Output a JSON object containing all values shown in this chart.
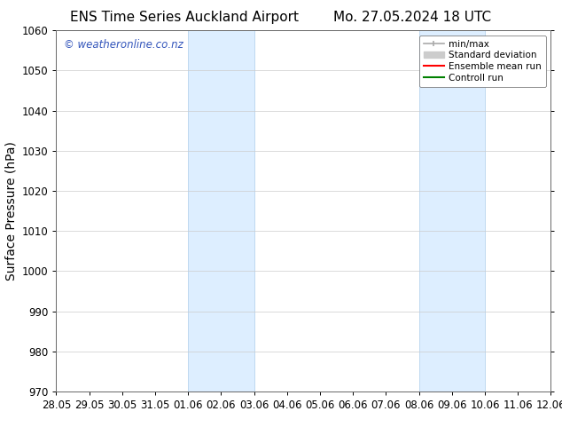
{
  "title_left": "ENS Time Series Auckland Airport",
  "title_right": "Mo. 27.05.2024 18 UTC",
  "ylabel": "Surface Pressure (hPa)",
  "ylim": [
    970,
    1060
  ],
  "yticks": [
    970,
    980,
    990,
    1000,
    1010,
    1020,
    1030,
    1040,
    1050,
    1060
  ],
  "x_tick_labels": [
    "28.05",
    "29.05",
    "30.05",
    "31.05",
    "01.06",
    "02.06",
    "03.06",
    "04.06",
    "05.06",
    "06.06",
    "07.06",
    "08.06",
    "09.06",
    "10.06",
    "11.06",
    "12.06"
  ],
  "x_tick_positions": [
    0,
    1,
    2,
    3,
    4,
    5,
    6,
    7,
    8,
    9,
    10,
    11,
    12,
    13,
    14,
    15
  ],
  "shaded_regions": [
    {
      "xmin": 4,
      "xmax": 6
    },
    {
      "xmin": 11,
      "xmax": 13
    }
  ],
  "shaded_color": "#ddeeff",
  "shaded_edgecolor": "#b8d4ee",
  "watermark_text": "© weatheronline.co.nz",
  "watermark_color": "#3355bb",
  "legend_entries": [
    {
      "label": "min/max"
    },
    {
      "label": "Standard deviation"
    },
    {
      "label": "Ensemble mean run"
    },
    {
      "label": "Controll run"
    }
  ],
  "minmax_color": "#aaaaaa",
  "std_color": "#cccccc",
  "ens_color": "red",
  "ctrl_color": "green",
  "background_color": "#ffffff",
  "spine_color": "#666666",
  "grid_color": "#cccccc",
  "title_fontsize": 11,
  "axis_label_fontsize": 10,
  "tick_fontsize": 8.5,
  "watermark_fontsize": 8.5,
  "legend_fontsize": 7.5
}
